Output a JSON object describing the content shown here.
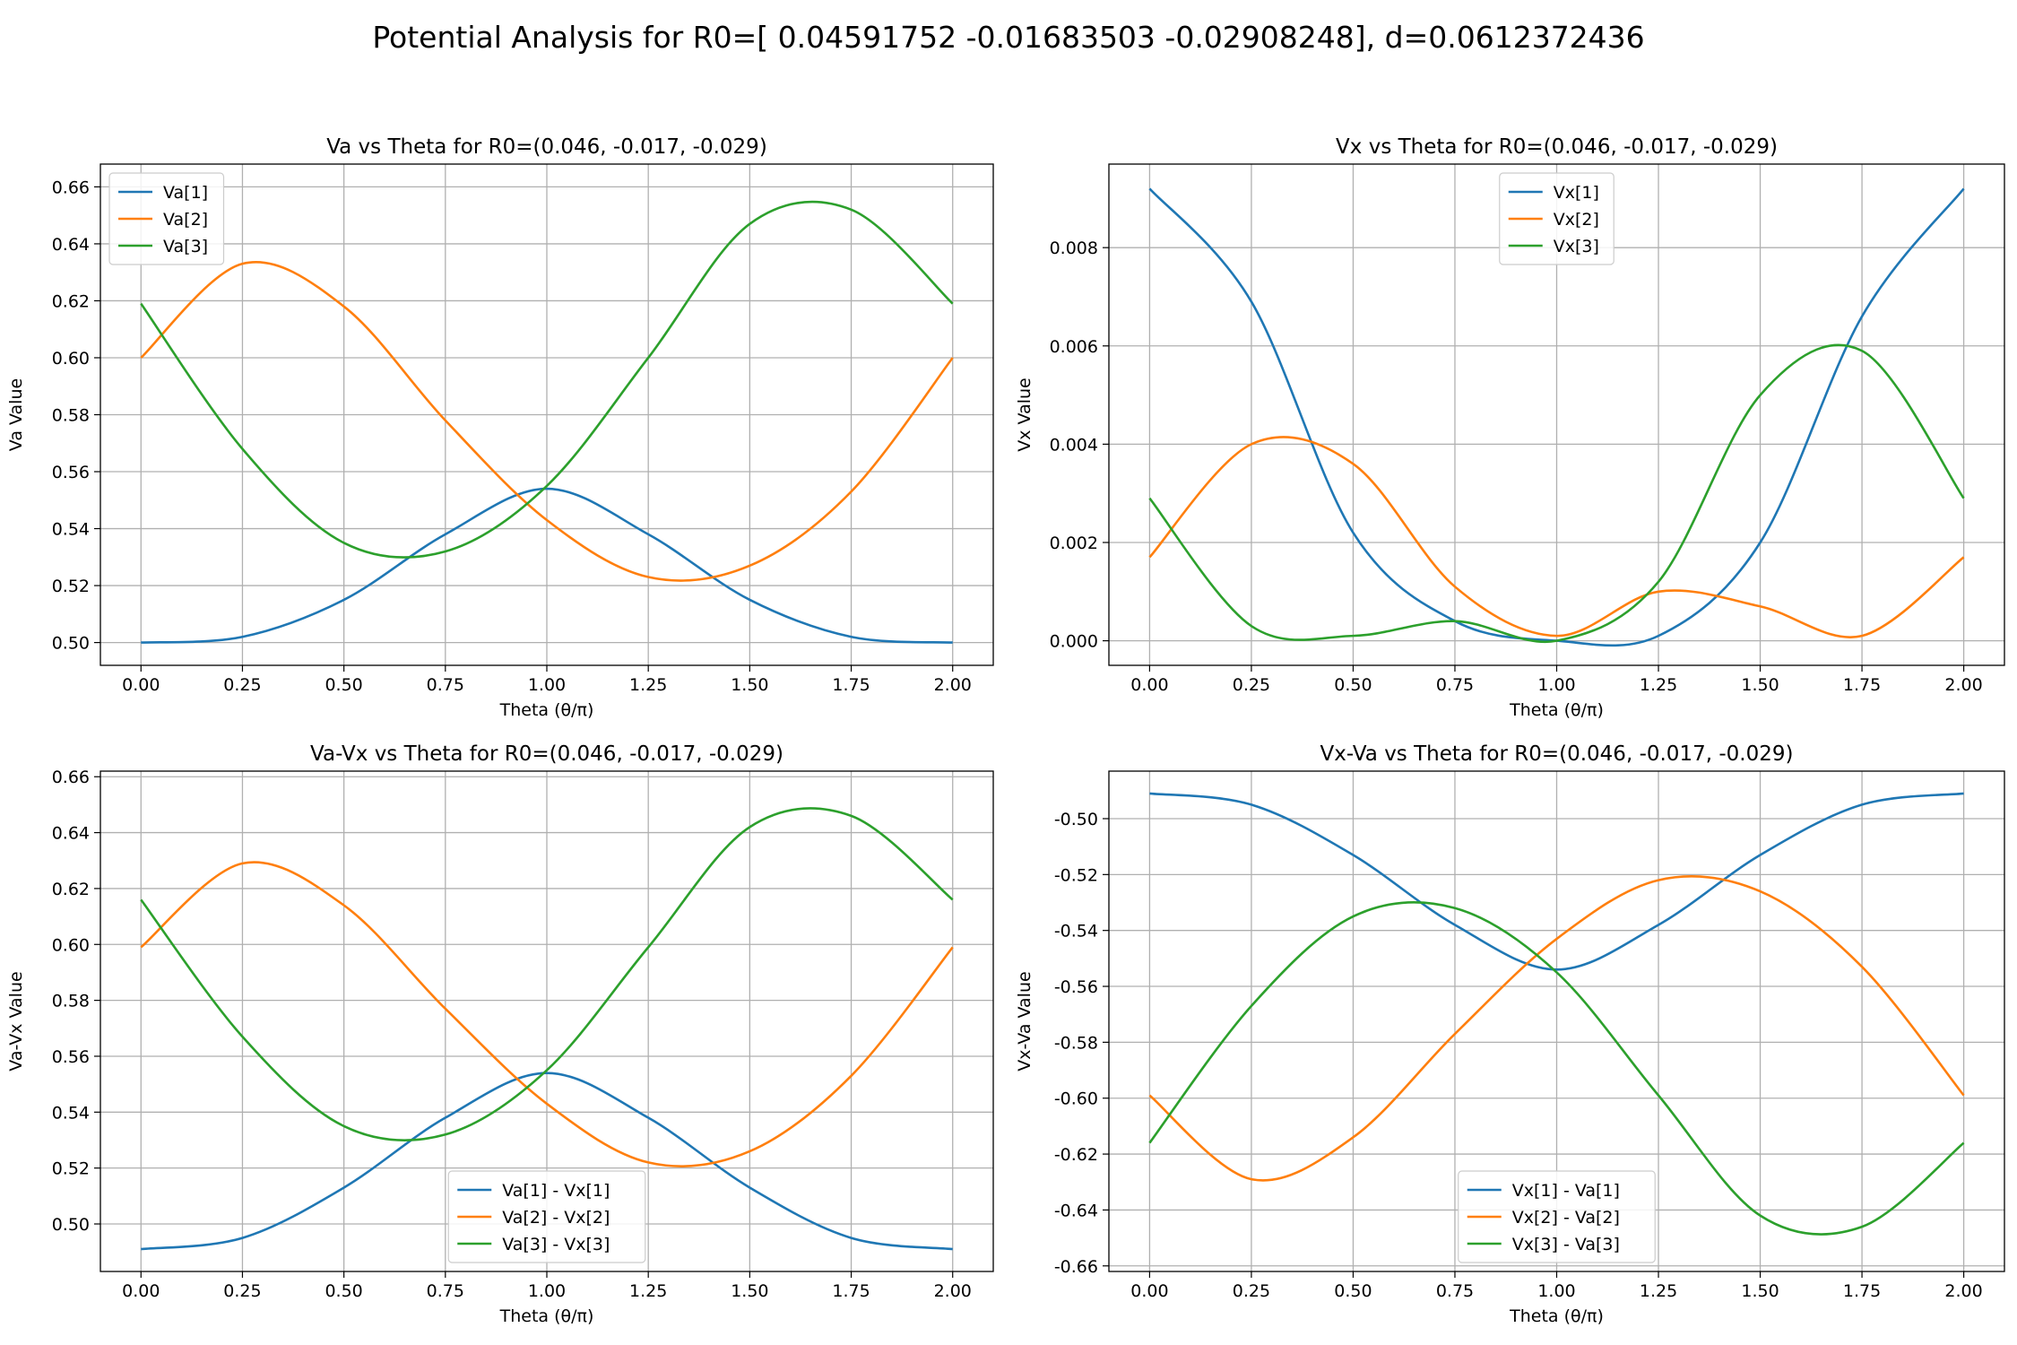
{
  "figure": {
    "title": "Potential Analysis for R0=[ 0.04591752 -0.01683503 -0.02908248], d=0.0612372436"
  },
  "colors": {
    "c1": "#1f77b4",
    "c2": "#ff7f0e",
    "c3": "#2ca02c",
    "grid": "#b0b0b0"
  },
  "chart_data": [
    {
      "type": "line",
      "title": "Va vs Theta for R0=(0.046, -0.017, -0.029)",
      "xlabel": "Theta (θ/π)",
      "ylabel": "Va Value",
      "xlim": [
        -0.1,
        2.1
      ],
      "ylim": [
        0.492,
        0.668
      ],
      "xticks": [
        "0.00",
        "0.25",
        "0.50",
        "0.75",
        "1.00",
        "1.25",
        "1.50",
        "1.75",
        "2.00"
      ],
      "yticks": [
        "0.50",
        "0.52",
        "0.54",
        "0.56",
        "0.58",
        "0.60",
        "0.62",
        "0.64",
        "0.66"
      ],
      "grid": true,
      "legend_position": "upper-left",
      "x": [
        0,
        0.25,
        0.5,
        0.75,
        1.0,
        1.25,
        1.5,
        1.75,
        2.0
      ],
      "series": [
        {
          "name": "Va[1]",
          "values": [
            0.5,
            0.502,
            0.515,
            0.538,
            0.554,
            0.538,
            0.515,
            0.502,
            0.5
          ]
        },
        {
          "name": "Va[2]",
          "values": [
            0.6,
            0.633,
            0.618,
            0.578,
            0.543,
            0.523,
            0.527,
            0.553,
            0.6
          ]
        },
        {
          "name": "Va[3]",
          "values": [
            0.619,
            0.568,
            0.535,
            0.532,
            0.555,
            0.6,
            0.647,
            0.652,
            0.619
          ]
        }
      ]
    },
    {
      "type": "line",
      "title": "Vx vs Theta for R0=(0.046, -0.017, -0.029)",
      "xlabel": "Theta (θ/π)",
      "ylabel": "Vx Value",
      "xlim": [
        -0.1,
        2.1
      ],
      "ylim": [
        -0.0005,
        0.0097
      ],
      "xticks": [
        "0.00",
        "0.25",
        "0.50",
        "0.75",
        "1.00",
        "1.25",
        "1.50",
        "1.75",
        "2.00"
      ],
      "yticks": [
        "0.000",
        "0.002",
        "0.004",
        "0.006",
        "0.008"
      ],
      "grid": true,
      "legend_position": "upper-center",
      "x": [
        0,
        0.25,
        0.5,
        0.75,
        1.0,
        1.25,
        1.5,
        1.75,
        2.0
      ],
      "series": [
        {
          "name": "Vx[1]",
          "values": [
            0.0092,
            0.0069,
            0.0022,
            0.0004,
            0.0,
            0.0001,
            0.002,
            0.0066,
            0.0092
          ]
        },
        {
          "name": "Vx[2]",
          "values": [
            0.0017,
            0.004,
            0.0036,
            0.0011,
            0.0001,
            0.001,
            0.0007,
            0.0001,
            0.0017
          ]
        },
        {
          "name": "Vx[3]",
          "values": [
            0.0029,
            0.0003,
            0.0001,
            0.0004,
            0.0,
            0.0012,
            0.005,
            0.0059,
            0.0029
          ]
        }
      ]
    },
    {
      "type": "line",
      "title": "Va-Vx vs Theta for R0=(0.046, -0.017, -0.029)",
      "xlabel": "Theta (θ/π)",
      "ylabel": "Va-Vx Value",
      "xlim": [
        -0.1,
        2.1
      ],
      "ylim": [
        0.483,
        0.662
      ],
      "xticks": [
        "0.00",
        "0.25",
        "0.50",
        "0.75",
        "1.00",
        "1.25",
        "1.50",
        "1.75",
        "2.00"
      ],
      "yticks": [
        "0.50",
        "0.52",
        "0.54",
        "0.56",
        "0.58",
        "0.60",
        "0.62",
        "0.64",
        "0.66"
      ],
      "grid": true,
      "legend_position": "lower-center",
      "x": [
        0,
        0.25,
        0.5,
        0.75,
        1.0,
        1.25,
        1.5,
        1.75,
        2.0
      ],
      "series": [
        {
          "name": "Va[1] - Vx[1]",
          "values": [
            0.491,
            0.495,
            0.513,
            0.538,
            0.554,
            0.538,
            0.513,
            0.495,
            0.491
          ]
        },
        {
          "name": "Va[2] - Vx[2]",
          "values": [
            0.599,
            0.629,
            0.614,
            0.577,
            0.543,
            0.522,
            0.526,
            0.553,
            0.599
          ]
        },
        {
          "name": "Va[3] - Vx[3]",
          "values": [
            0.616,
            0.567,
            0.535,
            0.532,
            0.555,
            0.599,
            0.642,
            0.646,
            0.616
          ]
        }
      ]
    },
    {
      "type": "line",
      "title": "Vx-Va vs Theta for R0=(0.046, -0.017, -0.029)",
      "xlabel": "Theta (θ/π)",
      "ylabel": "Vx-Va Value",
      "xlim": [
        -0.1,
        2.1
      ],
      "ylim": [
        -0.662,
        -0.483
      ],
      "xticks": [
        "0.00",
        "0.25",
        "0.50",
        "0.75",
        "1.00",
        "1.25",
        "1.50",
        "1.75",
        "2.00"
      ],
      "yticks": [
        "-0.50",
        "-0.52",
        "-0.54",
        "-0.56",
        "-0.58",
        "-0.60",
        "-0.62",
        "-0.64",
        "-0.66"
      ],
      "grid": true,
      "legend_position": "lower-center",
      "x": [
        0,
        0.25,
        0.5,
        0.75,
        1.0,
        1.25,
        1.5,
        1.75,
        2.0
      ],
      "series": [
        {
          "name": "Vx[1] - Va[1]",
          "values": [
            -0.491,
            -0.495,
            -0.513,
            -0.538,
            -0.554,
            -0.538,
            -0.513,
            -0.495,
            -0.491
          ]
        },
        {
          "name": "Vx[2] - Va[2]",
          "values": [
            -0.599,
            -0.629,
            -0.614,
            -0.577,
            -0.543,
            -0.522,
            -0.526,
            -0.553,
            -0.599
          ]
        },
        {
          "name": "Vx[3] - Va[3]",
          "values": [
            -0.616,
            -0.567,
            -0.535,
            -0.532,
            -0.555,
            -0.599,
            -0.642,
            -0.646,
            -0.616
          ]
        }
      ]
    }
  ]
}
